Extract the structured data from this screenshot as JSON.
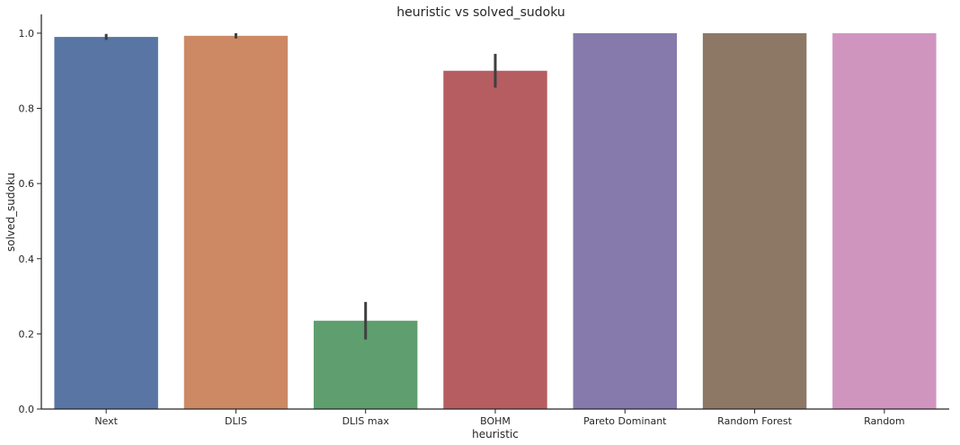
{
  "chart_data": {
    "type": "bar",
    "title": "heuristic vs solved_sudoku",
    "xlabel": "heuristic",
    "ylabel": "solved_sudoku",
    "ylim": [
      0,
      1.05
    ],
    "yticks": [
      0.0,
      0.2,
      0.4,
      0.6,
      0.8,
      1.0
    ],
    "ytick_labels": [
      "0.0",
      "0.2",
      "0.4",
      "0.6",
      "0.8",
      "1.0"
    ],
    "categories": [
      "Next",
      "DLIS",
      "DLIS max",
      "BOHM",
      "Pareto Dominant",
      "Random Forest",
      "Random"
    ],
    "values": [
      0.99,
      0.993,
      0.235,
      0.9,
      1.0,
      1.0,
      1.0
    ],
    "error_low": [
      0.982,
      0.986,
      0.185,
      0.855,
      1.0,
      1.0,
      1.0
    ],
    "error_high": [
      0.998,
      1.0,
      0.285,
      0.945,
      1.0,
      1.0,
      1.0
    ],
    "colors": [
      "#5875a4",
      "#cc8963",
      "#5f9e6e",
      "#b55d60",
      "#857aab",
      "#8d7866",
      "#d095bf"
    ],
    "grid": false,
    "legend": "none"
  }
}
